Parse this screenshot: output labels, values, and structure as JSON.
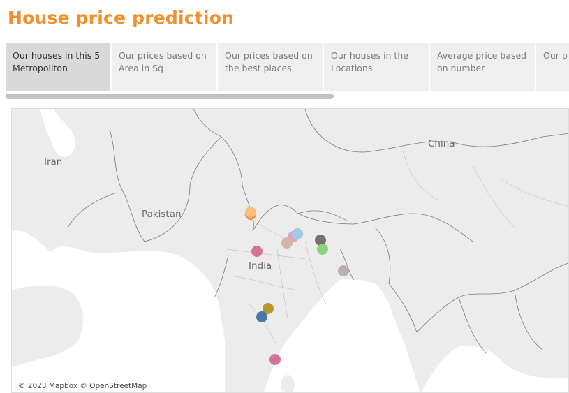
{
  "page": {
    "title": "House price prediction",
    "title_color": "#f28e2b"
  },
  "tabs": [
    {
      "label": "Our houses in this 5 Metropoliton",
      "active": true
    },
    {
      "label": "Our prices based on Area in Sq",
      "active": false
    },
    {
      "label": "Our prices based on the best places",
      "active": false
    },
    {
      "label": "Our houses in the Locations",
      "active": false
    },
    {
      "label": "Average price based on number",
      "active": false
    },
    {
      "label": "Our p rice..",
      "active": false
    }
  ],
  "map": {
    "labels": {
      "iran": "Iran",
      "pakistan": "Pakistan",
      "india": "India",
      "china": "China"
    },
    "attribution": "© 2023 Mapbox © OpenStreetMap",
    "land_color": "#ececec",
    "water_color": "#ffffff",
    "border_color": "#555555",
    "markers": [
      {
        "name": "delhi-1",
        "color": "#f28e2b"
      },
      {
        "name": "delhi-2",
        "color": "#ffbe7d"
      },
      {
        "name": "lucknow-1",
        "color": "#d4a6c8"
      },
      {
        "name": "lucknow-2",
        "color": "#a0cbe8"
      },
      {
        "name": "kanpur",
        "color": "#d7b5a6"
      },
      {
        "name": "bhopal",
        "color": "#d37295"
      },
      {
        "name": "patna",
        "color": "#79706e"
      },
      {
        "name": "ranchi",
        "color": "#8cd17d"
      },
      {
        "name": "kolkata",
        "color": "#bab0ac"
      },
      {
        "name": "hyderabad-1",
        "color": "#b6992d"
      },
      {
        "name": "hyderabad-2",
        "color": "#4e79a7"
      },
      {
        "name": "chennai",
        "color": "#d37295"
      }
    ]
  }
}
